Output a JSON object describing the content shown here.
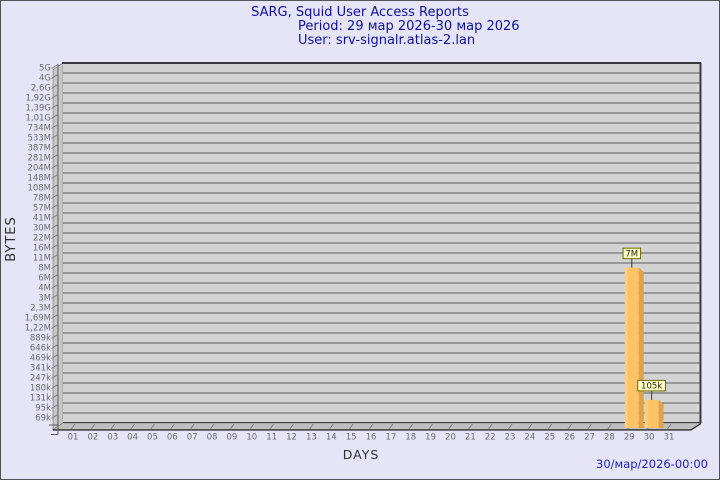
{
  "chart_data": {
    "type": "bar",
    "title": "SARG, Squid User Access Reports",
    "period": "Period: 29 мар 2026-30 мар 2026",
    "user": "User: srv-signalr.atlas-2.lan",
    "xlabel": "DAYS",
    "ylabel": "BYTES",
    "timestamp": "30/мар/2026-00:00",
    "grid": true,
    "legend": false,
    "yscale": "log-per-tick",
    "x_categories": [
      "01",
      "02",
      "03",
      "04",
      "05",
      "06",
      "07",
      "08",
      "09",
      "10",
      "11",
      "12",
      "13",
      "14",
      "15",
      "16",
      "17",
      "18",
      "19",
      "20",
      "21",
      "22",
      "23",
      "24",
      "25",
      "26",
      "27",
      "28",
      "29",
      "30",
      "31"
    ],
    "y_tick_labels": [
      "5G",
      "4G",
      "2,6G",
      "1,92G",
      "1,39G",
      "1,01G",
      "734M",
      "533M",
      "387M",
      "281M",
      "204M",
      "148M",
      "108M",
      "78M",
      "57M",
      "41M",
      "30M",
      "22M",
      "16M",
      "11M",
      "8M",
      "6M",
      "4M",
      "3M",
      "2,3M",
      "1,69M",
      "1,22M",
      "889k",
      "646k",
      "469k",
      "341k",
      "247k",
      "180k",
      "131k",
      "95k",
      "69k"
    ],
    "y_tick_values": [
      5000000000,
      4000000000,
      2600000000,
      1920000000,
      1390000000,
      1010000000,
      734000000,
      533000000,
      387000000,
      281000000,
      204000000,
      148000000,
      108000000,
      78000000,
      57000000,
      41000000,
      30000000,
      22000000,
      16000000,
      11000000,
      8000000,
      6000000,
      4000000,
      3000000,
      2300000,
      1690000,
      1220000,
      889000,
      646000,
      469000,
      341000,
      247000,
      180000,
      131000,
      95000,
      69000
    ],
    "bars": [
      {
        "day": "29",
        "value_label": "7M",
        "value_bytes": 7000000
      },
      {
        "day": "30",
        "value_label": "105k",
        "value_bytes": 105000
      }
    ],
    "colors": {
      "background": "#e5e5f7",
      "title_text": "#0f0f99",
      "timestamp_text": "#1d1dbe",
      "plot_fill": "#d3d3d3",
      "wall_fill": "#c7c7c7",
      "floor_fill": "#bfbfbf",
      "grid_line": "#5f5f5f",
      "plot_border": "#3a3a3e",
      "axis_text": "#6a6a6a",
      "axis_title_text": "#2e2e2e",
      "bar_front": "#fec367",
      "bar_side": "#dfa348",
      "bar_highlight": "#ffd894",
      "value_box_fill": "#ffffc8",
      "value_box_border": "#6b6b00",
      "value_box_text": "#26260a"
    }
  }
}
